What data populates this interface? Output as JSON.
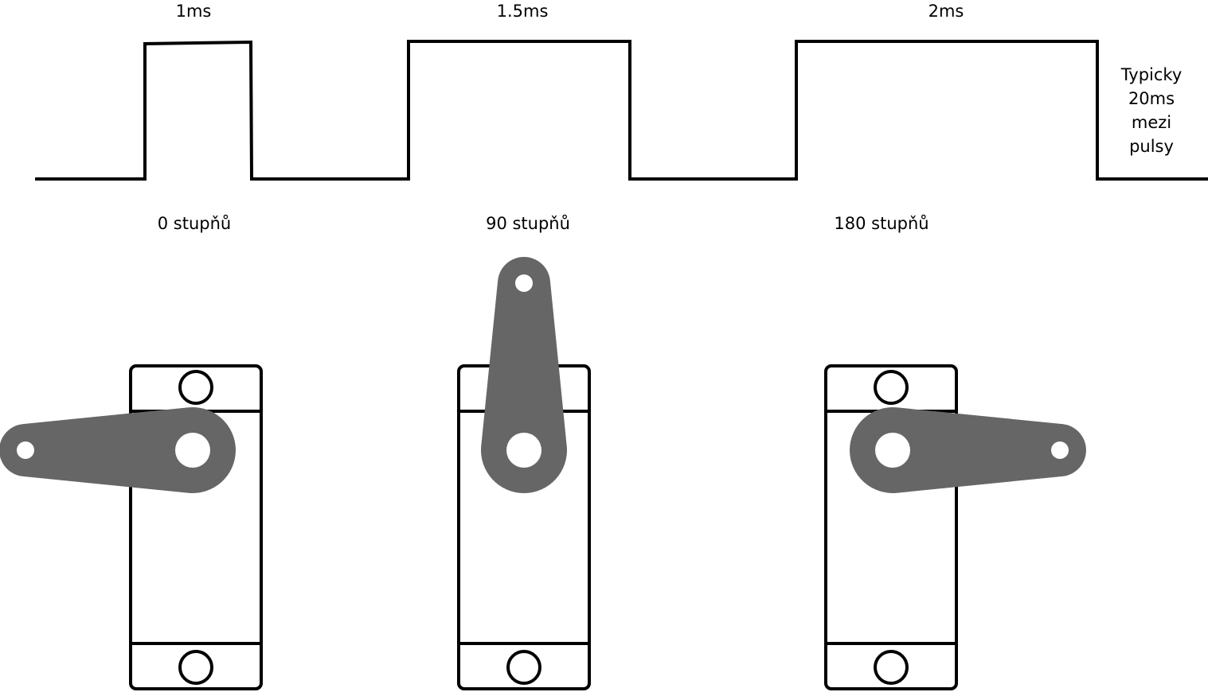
{
  "pulses": {
    "labels": [
      "1ms",
      "1.5ms",
      "2ms"
    ],
    "gap_note": [
      "Typicky",
      "20ms",
      "mezi",
      "pulsy"
    ]
  },
  "servos": [
    {
      "angle_label": "0 stupňů",
      "horn_angle_deg": 180
    },
    {
      "angle_label": "90 stupňů",
      "horn_angle_deg": 90
    },
    {
      "angle_label": "180 stupňů",
      "horn_angle_deg": 0
    }
  ],
  "colors": {
    "line": "#000000",
    "horn": "#666666",
    "background": "#ffffff"
  }
}
